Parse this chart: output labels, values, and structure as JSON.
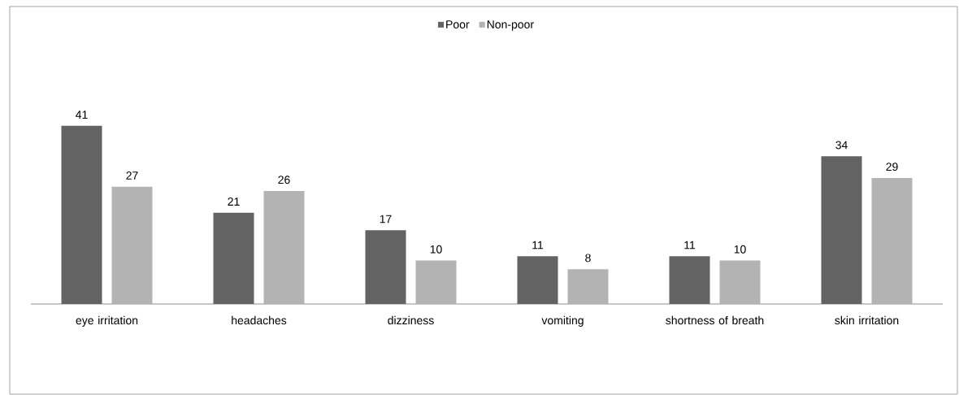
{
  "chart_data": {
    "type": "bar",
    "categories": [
      "eye irritation",
      "headaches",
      "dizziness",
      "vomiting",
      "shortness of breath",
      "skin irritation"
    ],
    "series": [
      {
        "name": "Poor",
        "color": "#636363",
        "values": [
          41,
          21,
          17,
          11,
          11,
          34
        ]
      },
      {
        "name": "Non-poor",
        "color": "#b3b3b3",
        "values": [
          27,
          26,
          10,
          8,
          10,
          29
        ]
      }
    ],
    "data_labels": true,
    "legend": "top"
  }
}
